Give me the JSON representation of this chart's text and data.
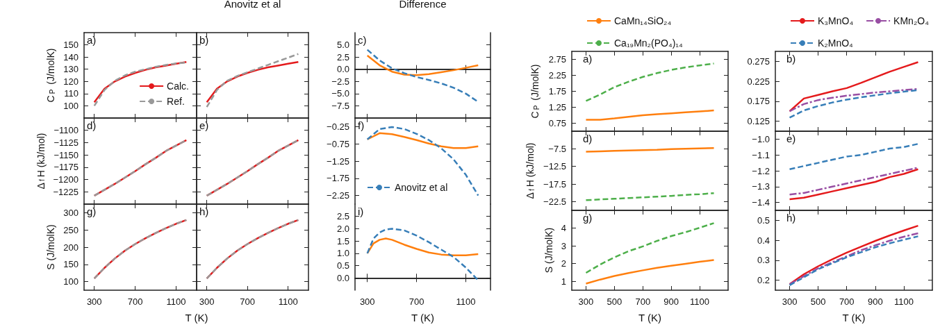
{
  "chart_data": [
    {
      "type": "line",
      "ylabel": "C$_{P}$ (J/molK)",
      "tick_labels": "y",
      "legend": "bottom right",
      "annotations": [
        "a)"
      ],
      "x": [
        300,
        400,
        500,
        600,
        700,
        800,
        900,
        1000,
        1100,
        1200
      ],
      "xlim": [
        200,
        1300
      ],
      "xticks": [
        300,
        700,
        1100
      ],
      "ylim": [
        90,
        160
      ],
      "yticks": [
        100,
        110,
        120,
        130,
        140,
        150
      ],
      "series": [
        {
          "name": "Calc.",
          "color": "#e41a1c",
          "line_style": "solid",
          "values": [
            103,
            114,
            120,
            124,
            127,
            129.5,
            131.5,
            133,
            134.5,
            136
          ]
        },
        {
          "name": "Ref.",
          "color": "#999999",
          "line_style": "dashed",
          "values": [
            100,
            113,
            120.5,
            125,
            128,
            130,
            132,
            133.5,
            134.8,
            135.5
          ]
        }
      ]
    },
    {
      "type": "line",
      "title": "Anovitz et al",
      "tick_labels": false,
      "annotations": [
        "b)"
      ],
      "x": [
        300,
        400,
        500,
        600,
        700,
        800,
        900,
        1000,
        1100,
        1200
      ],
      "xlim": [
        200,
        1300
      ],
      "xticks": [
        300,
        700,
        1100
      ],
      "ylim": [
        90,
        160
      ],
      "yticks": [
        100,
        110,
        120,
        130,
        140,
        150
      ],
      "series": [
        {
          "color": "#e41a1c",
          "line_style": "solid",
          "values": [
            103,
            114,
            120,
            124,
            127,
            129.5,
            131.5,
            133,
            134.5,
            136
          ]
        },
        {
          "color": "#999999",
          "line_style": "dashed",
          "values": [
            99,
            113,
            120.5,
            124.5,
            127.5,
            130.5,
            133.5,
            136.5,
            139.5,
            142.5
          ]
        }
      ]
    },
    {
      "type": "line",
      "title": "Difference",
      "tick_labels": "y",
      "annotations": [
        "c)"
      ],
      "x": [
        300,
        400,
        500,
        600,
        700,
        800,
        900,
        1000,
        1100,
        1200
      ],
      "xlim": [
        200,
        1300
      ],
      "xticks": [
        300,
        700,
        1100
      ],
      "ylim": [
        -10,
        7.5
      ],
      "yticks": [
        {
          "value": 5,
          "label": "5.0"
        },
        2.5,
        {
          "value": 0,
          "label": "0.0"
        },
        {
          "value": -2.5,
          "label": "−2.5"
        },
        {
          "value": -5,
          "label": "−5.0"
        },
        {
          "value": -7.5,
          "label": "−7.5"
        }
      ],
      "series": [
        {
          "color": "#ff7f0e",
          "line_style": "solid",
          "values": [
            2.8,
            0.8,
            -0.5,
            -1.1,
            -1.2,
            -1.0,
            -0.6,
            -0.2,
            0.3,
            0.8
          ]
        },
        {
          "color": "#377eb8",
          "line_style": "dashed",
          "values": [
            4.0,
            1.8,
            0.2,
            -0.8,
            -1.6,
            -2.2,
            -2.9,
            -3.8,
            -5.0,
            -6.7
          ]
        }
      ]
    },
    {
      "type": "line",
      "ylabel": "Δ$_{f}$H (kJ/mol)",
      "tick_labels": "y",
      "annotations": [
        "d)"
      ],
      "x": [
        300,
        400,
        500,
        600,
        700,
        800,
        900,
        1000,
        1100,
        1200
      ],
      "xlim": [
        200,
        1300
      ],
      "xticks": [
        300,
        700,
        1100
      ],
      "ylim": [
        -1250,
        -1075
      ],
      "yticks": [
        {
          "value": -1100,
          "label": "−1100"
        },
        {
          "value": -1125,
          "label": "−1125"
        },
        {
          "value": -1150,
          "label": "−1150"
        },
        {
          "value": -1175,
          "label": "−1175"
        },
        {
          "value": -1200,
          "label": "−1200"
        },
        {
          "value": -1225,
          "label": "−1225"
        }
      ],
      "series": [
        {
          "color": "#e41a1c",
          "line_style": "solid",
          "values": [
            -1233,
            -1221,
            -1209,
            -1196,
            -1183,
            -1169,
            -1156,
            -1142,
            -1131,
            -1120
          ]
        },
        {
          "color": "#999999",
          "line_style": "dashed",
          "values": [
            -1233,
            -1221,
            -1209,
            -1196,
            -1183,
            -1169,
            -1156,
            -1142,
            -1131,
            -1120
          ]
        }
      ]
    },
    {
      "type": "line",
      "tick_labels": false,
      "annotations": [
        "e)"
      ],
      "x": [
        300,
        400,
        500,
        600,
        700,
        800,
        900,
        1000,
        1100,
        1200
      ],
      "xlim": [
        200,
        1300
      ],
      "xticks": [
        300,
        700,
        1100
      ],
      "ylim": [
        -1250,
        -1075
      ],
      "yticks": [
        -1100,
        -1125,
        -1150,
        -1175,
        -1200,
        -1225
      ],
      "series": [
        {
          "color": "#e41a1c",
          "line_style": "solid",
          "values": [
            -1233,
            -1221,
            -1209,
            -1196,
            -1183,
            -1169,
            -1156,
            -1142,
            -1131,
            -1120
          ]
        },
        {
          "color": "#999999",
          "line_style": "dashed",
          "values": [
            -1233,
            -1221,
            -1209,
            -1196,
            -1183,
            -1169,
            -1156,
            -1142,
            -1131,
            -1120
          ]
        }
      ]
    },
    {
      "type": "line",
      "tick_labels": "y",
      "legend": "bottom left",
      "annotations": [
        "f)"
      ],
      "x": [
        300,
        400,
        500,
        600,
        700,
        800,
        900,
        1000,
        1100,
        1200
      ],
      "xlim": [
        200,
        1300
      ],
      "xticks": [
        300,
        700,
        1100
      ],
      "ylim": [
        -2.5,
        0
      ],
      "yticks": [
        {
          "value": -0.25,
          "label": "−0.25"
        },
        {
          "value": -0.75,
          "label": "−0.75"
        },
        {
          "value": -1.25,
          "label": "−1.25"
        },
        {
          "value": -1.75,
          "label": "−1.75"
        },
        {
          "value": -2.25,
          "label": "−2.25"
        }
      ],
      "series": [
        {
          "color": "#ff7f0e",
          "line_style": "solid",
          "values": [
            -0.62,
            -0.44,
            -0.47,
            -0.55,
            -0.64,
            -0.74,
            -0.82,
            -0.87,
            -0.87,
            -0.82
          ]
        },
        {
          "name": "Anovitz et al",
          "color": "#377eb8",
          "line_style": "dashed",
          "values": [
            -0.62,
            -0.32,
            -0.26,
            -0.32,
            -0.46,
            -0.64,
            -0.88,
            -1.2,
            -1.65,
            -2.25
          ]
        }
      ]
    },
    {
      "type": "line",
      "xlabel": "T (K)",
      "ylabel": "S (J/molK)",
      "annotations": [
        "g)"
      ],
      "x": [
        300,
        400,
        500,
        600,
        700,
        800,
        900,
        1000,
        1100,
        1200
      ],
      "xlim": [
        200,
        1300
      ],
      "xticks": [
        300,
        700,
        1100
      ],
      "ylim": [
        75,
        325
      ],
      "yticks": [
        100,
        150,
        200,
        250,
        300
      ],
      "series": [
        {
          "color": "#e41a1c",
          "line_style": "solid",
          "values": [
            109,
            140,
            167,
            190,
            209,
            226,
            241,
            255,
            268,
            279
          ]
        },
        {
          "color": "#999999",
          "line_style": "dashed",
          "values": [
            109,
            140,
            167,
            190,
            209,
            226,
            241,
            255,
            268,
            279
          ]
        }
      ]
    },
    {
      "type": "line",
      "tick_labels": "x",
      "annotations": [
        "h)"
      ],
      "x": [
        300,
        400,
        500,
        600,
        700,
        800,
        900,
        1000,
        1100,
        1200
      ],
      "xlim": [
        200,
        1300
      ],
      "xticks": [
        300,
        700,
        1100
      ],
      "ylim": [
        75,
        325
      ],
      "yticks": [
        100,
        150,
        200,
        250,
        300
      ],
      "series": [
        {
          "color": "#e41a1c",
          "line_style": "solid",
          "values": [
            109,
            140,
            167,
            190,
            209,
            226,
            241,
            255,
            268,
            279
          ]
        },
        {
          "color": "#999999",
          "line_style": "dashed",
          "values": [
            109,
            140,
            167,
            190,
            209,
            226,
            241,
            255,
            268,
            279
          ]
        }
      ]
    },
    {
      "type": "line",
      "xlabel": "T (K)",
      "annotations": [
        "i)"
      ],
      "x": [
        300,
        350,
        400,
        450,
        500,
        600,
        700,
        800,
        900,
        1000,
        1100,
        1200
      ],
      "xlim": [
        200,
        1300
      ],
      "xticks": [
        300,
        700,
        1100
      ],
      "ylim": [
        -0.5,
        3
      ],
      "yticks": [
        {
          "value": 0,
          "label": "0.0"
        },
        0.5,
        {
          "value": 1,
          "label": "1.0"
        },
        1.5,
        {
          "value": 2,
          "label": "2.0"
        },
        2.5
      ],
      "series": [
        {
          "color": "#ff7f0e",
          "line_style": "solid",
          "values": [
            1.0,
            1.4,
            1.55,
            1.6,
            1.55,
            1.35,
            1.18,
            1.03,
            0.95,
            0.92,
            0.92,
            0.97
          ]
        },
        {
          "color": "#377eb8",
          "line_style": "dashed",
          "values": [
            1.0,
            1.6,
            1.85,
            1.97,
            2.0,
            1.93,
            1.72,
            1.45,
            1.15,
            0.85,
            0.42,
            -0.1
          ]
        }
      ]
    },
    {
      "type": "line",
      "ylabel": "C$_{P}$ (J/molK)",
      "tick_labels": "y",
      "legend": "top",
      "annotations": [
        "a)"
      ],
      "x": [
        300,
        400,
        500,
        600,
        700,
        800,
        900,
        1000,
        1100,
        1200
      ],
      "xlim": [
        200,
        1300
      ],
      "xticks": [
        300,
        500,
        700,
        900,
        1100
      ],
      "ylim": [
        0.5,
        3
      ],
      "yticks": [
        0.75,
        1.25,
        1.75,
        2.25,
        2.75
      ],
      "series": [
        {
          "name": "CaMn₁₄SiO₂₄",
          "color": "#ff7f0e",
          "line_style": "solid",
          "values": [
            0.86,
            0.86,
            0.9,
            0.95,
            1.0,
            1.03,
            1.06,
            1.09,
            1.12,
            1.15
          ]
        },
        {
          "name": "Ca₁₉Mn₂(PO₄)₁₄",
          "color": "#4daf4a",
          "line_style": "dashed",
          "values": [
            1.45,
            1.65,
            1.88,
            2.05,
            2.2,
            2.32,
            2.42,
            2.5,
            2.56,
            2.62
          ]
        }
      ]
    },
    {
      "type": "line",
      "tick_labels": "y",
      "legend": "top",
      "annotations": [
        "b)"
      ],
      "x": [
        300,
        400,
        500,
        600,
        700,
        800,
        900,
        1000,
        1100,
        1200
      ],
      "xlim": [
        200,
        1300
      ],
      "xticks": [
        300,
        500,
        700,
        900,
        1100
      ],
      "ylim": [
        0.1,
        0.3
      ],
      "yticks": [
        0.125,
        0.175,
        0.225,
        0.275
      ],
      "series": [
        {
          "name": "K₃MnO₄",
          "color": "#e41a1c",
          "line_style": "solid",
          "values": [
            0.15,
            0.182,
            0.191,
            0.2,
            0.208,
            0.221,
            0.235,
            0.249,
            0.261,
            0.273
          ]
        },
        {
          "name": "KMn₂O₄",
          "color": "#984ea3",
          "line_style": "dashdot",
          "values": [
            0.15,
            0.168,
            0.178,
            0.184,
            0.189,
            0.193,
            0.197,
            0.2,
            0.203,
            0.206
          ]
        },
        {
          "name": "K₂MnO₄",
          "color": "#377eb8",
          "line_style": "dashed",
          "values": [
            0.134,
            0.152,
            0.163,
            0.172,
            0.179,
            0.185,
            0.19,
            0.195,
            0.199,
            0.203
          ]
        }
      ]
    },
    {
      "type": "line",
      "ylabel": "Δ$_{f}$H (kJ/mol)",
      "tick_labels": "y",
      "annotations": [
        "d)"
      ],
      "x": [
        300,
        400,
        500,
        600,
        700,
        800,
        900,
        1000,
        1100,
        1200
      ],
      "xlim": [
        200,
        1300
      ],
      "xticks": [
        300,
        500,
        700,
        900,
        1100
      ],
      "ylim": [
        -25,
        -2.5
      ],
      "yticks": [
        {
          "value": -7.5,
          "label": "−7.5"
        },
        {
          "value": -12.5,
          "label": "−12.5"
        },
        {
          "value": -17.5,
          "label": "−17.5"
        },
        {
          "value": -22.5,
          "label": "−22.5"
        }
      ],
      "series": [
        {
          "color": "#ff7f0e",
          "line_style": "solid",
          "values": [
            -8.3,
            -8.2,
            -8.1,
            -8.0,
            -7.9,
            -7.8,
            -7.6,
            -7.5,
            -7.4,
            -7.3
          ]
        },
        {
          "color": "#4daf4a",
          "line_style": "dashed",
          "values": [
            -22.1,
            -21.9,
            -21.7,
            -21.5,
            -21.3,
            -21.1,
            -20.9,
            -20.6,
            -20.4,
            -20.1
          ]
        }
      ]
    },
    {
      "type": "line",
      "tick_labels": "y",
      "annotations": [
        "e)"
      ],
      "x": [
        300,
        400,
        500,
        600,
        700,
        800,
        900,
        1000,
        1100,
        1200
      ],
      "xlim": [
        200,
        1300
      ],
      "xticks": [
        300,
        500,
        700,
        900,
        1100
      ],
      "ylim": [
        -1.45,
        -0.95
      ],
      "yticks": [
        {
          "value": -1,
          "label": "−1.0"
        },
        {
          "value": -1.1,
          "label": "−1.1"
        },
        {
          "value": -1.2,
          "label": "−1.2"
        },
        {
          "value": -1.3,
          "label": "−1.3"
        },
        {
          "value": -1.4,
          "label": "−1.4"
        }
      ],
      "series": [
        {
          "color": "#e41a1c",
          "line_style": "solid",
          "values": [
            -1.38,
            -1.37,
            -1.35,
            -1.33,
            -1.31,
            -1.29,
            -1.27,
            -1.24,
            -1.22,
            -1.19
          ]
        },
        {
          "color": "#984ea3",
          "line_style": "dashdot",
          "values": [
            -1.35,
            -1.34,
            -1.32,
            -1.3,
            -1.28,
            -1.26,
            -1.24,
            -1.22,
            -1.2,
            -1.18
          ]
        },
        {
          "color": "#377eb8",
          "line_style": "dashed",
          "values": [
            -1.19,
            -1.17,
            -1.15,
            -1.13,
            -1.11,
            -1.1,
            -1.08,
            -1.06,
            -1.05,
            -1.03
          ]
        }
      ]
    },
    {
      "type": "line",
      "xlabel": "T (K)",
      "ylabel": "S (J/molK)",
      "annotations": [
        "g)"
      ],
      "x": [
        300,
        400,
        500,
        600,
        700,
        800,
        900,
        1000,
        1100,
        1200
      ],
      "xlim": [
        200,
        1300
      ],
      "xticks": [
        300,
        500,
        700,
        900,
        1100
      ],
      "ylim": [
        0.5,
        5
      ],
      "yticks": [
        1,
        2,
        3,
        4
      ],
      "series": [
        {
          "color": "#ff7f0e",
          "line_style": "solid",
          "values": [
            0.87,
            1.1,
            1.3,
            1.47,
            1.62,
            1.76,
            1.88,
            1.99,
            2.1,
            2.2
          ]
        },
        {
          "color": "#4daf4a",
          "line_style": "dashed",
          "values": [
            1.48,
            1.95,
            2.35,
            2.7,
            2.97,
            3.28,
            3.55,
            3.77,
            4.02,
            4.28
          ]
        }
      ]
    },
    {
      "type": "line",
      "xlabel": "T (K)",
      "annotations": [
        "h)"
      ],
      "x": [
        300,
        400,
        500,
        600,
        700,
        800,
        900,
        1000,
        1100,
        1200
      ],
      "xlim": [
        200,
        1300
      ],
      "xticks": [
        300,
        500,
        700,
        900,
        1100
      ],
      "ylim": [
        0.15,
        0.55
      ],
      "yticks": [
        0.2,
        0.3,
        0.4,
        0.5
      ],
      "series": [
        {
          "color": "#e41a1c",
          "line_style": "solid",
          "values": [
            0.18,
            0.23,
            0.27,
            0.305,
            0.338,
            0.368,
            0.397,
            0.424,
            0.449,
            0.473
          ]
        },
        {
          "color": "#984ea3",
          "line_style": "dashdot",
          "values": [
            0.18,
            0.22,
            0.26,
            0.29,
            0.32,
            0.35,
            0.375,
            0.398,
            0.418,
            0.435
          ]
        },
        {
          "color": "#377eb8",
          "line_style": "dashed",
          "values": [
            0.175,
            0.215,
            0.255,
            0.285,
            0.315,
            0.34,
            0.365,
            0.385,
            0.403,
            0.42
          ]
        }
      ]
    }
  ]
}
